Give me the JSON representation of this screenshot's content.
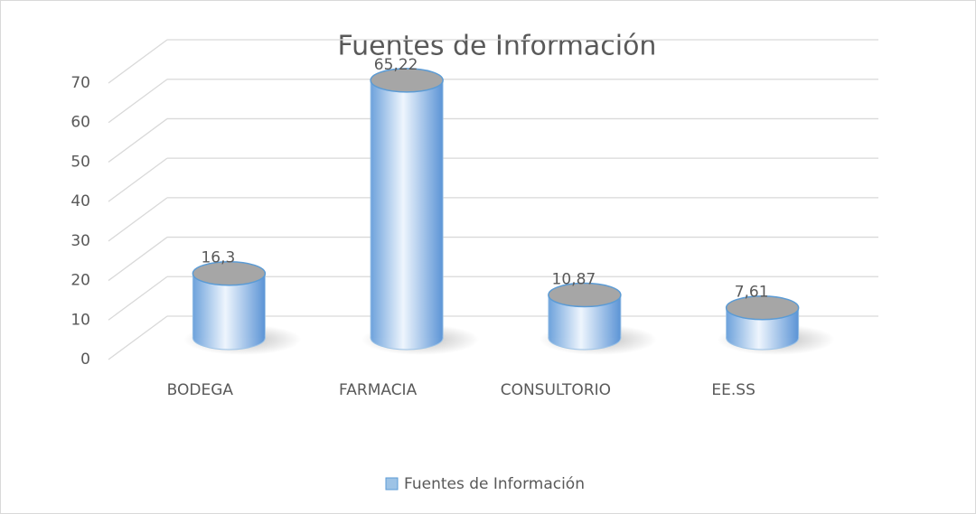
{
  "chart_data": {
    "type": "bar",
    "title": "Fuentes de Información",
    "categories": [
      "BODEGA",
      "FARMACIA",
      "CONSULTORIO",
      "EE.SS"
    ],
    "series": [
      {
        "name": "Fuentes de Información",
        "color": "#9dc3e6",
        "values": [
          16.3,
          65.22,
          10.87,
          7.61
        ],
        "value_labels": [
          "16,3",
          "65,22",
          "10,87",
          "7,61"
        ]
      }
    ],
    "ylim": [
      0,
      70
    ],
    "yticks": [
      0,
      10,
      20,
      30,
      40,
      50,
      60,
      70
    ],
    "grid": true,
    "legend": "bottom"
  }
}
